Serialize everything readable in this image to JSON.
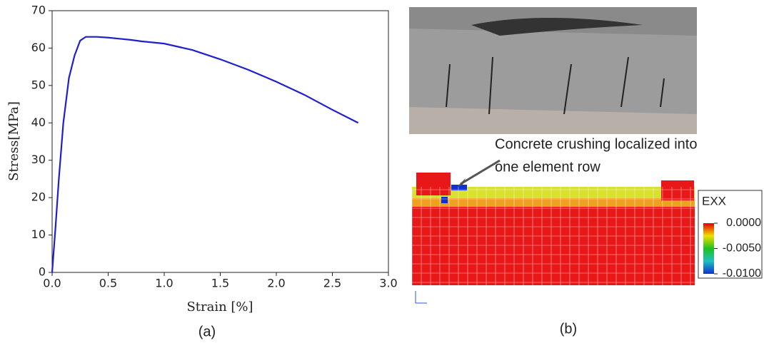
{
  "chart_data": {
    "type": "line",
    "xlabel": "Strain [%]",
    "ylabel": "Stress[MPa]",
    "color": "#1f1fd0",
    "x": [
      0,
      0.03,
      0.06,
      0.1,
      0.15,
      0.2,
      0.25,
      0.3,
      0.4,
      0.5,
      0.6,
      0.7,
      0.8,
      1.0,
      1.25,
      1.5,
      1.75,
      2.0,
      2.25,
      2.5,
      2.73
    ],
    "values": [
      0,
      12,
      25,
      40,
      52,
      58,
      62,
      63,
      63,
      62.8,
      62.5,
      62.2,
      61.8,
      61.2,
      59.5,
      57,
      54.2,
      51,
      47.5,
      43.5,
      40
    ],
    "xlim": [
      0,
      3
    ],
    "ylim": [
      0,
      70
    ],
    "xticks": [
      {
        "value": 0,
        "label": "0.0"
      },
      0.5,
      {
        "value": 1,
        "label": "1.0"
      },
      1.5,
      {
        "value": 2,
        "label": "2.0"
      },
      2.5,
      {
        "value": 3,
        "label": "3.0"
      }
    ],
    "yticks": [
      0,
      10,
      20,
      30,
      40,
      50,
      60,
      70
    ],
    "caption": "(a)"
  },
  "panel_b": {
    "caption": "(b)",
    "annotation": [
      "Concrete crushing localized into",
      "one element row"
    ],
    "colorbar": {
      "title": "EXX",
      "ticks": [
        {
          "value": 0,
          "label": "0.0000"
        },
        {
          "value": -0.005,
          "label": "-0.0050"
        },
        {
          "value": -0.01,
          "label": "-0.0100"
        }
      ],
      "range": [
        -0.01,
        0
      ]
    }
  }
}
